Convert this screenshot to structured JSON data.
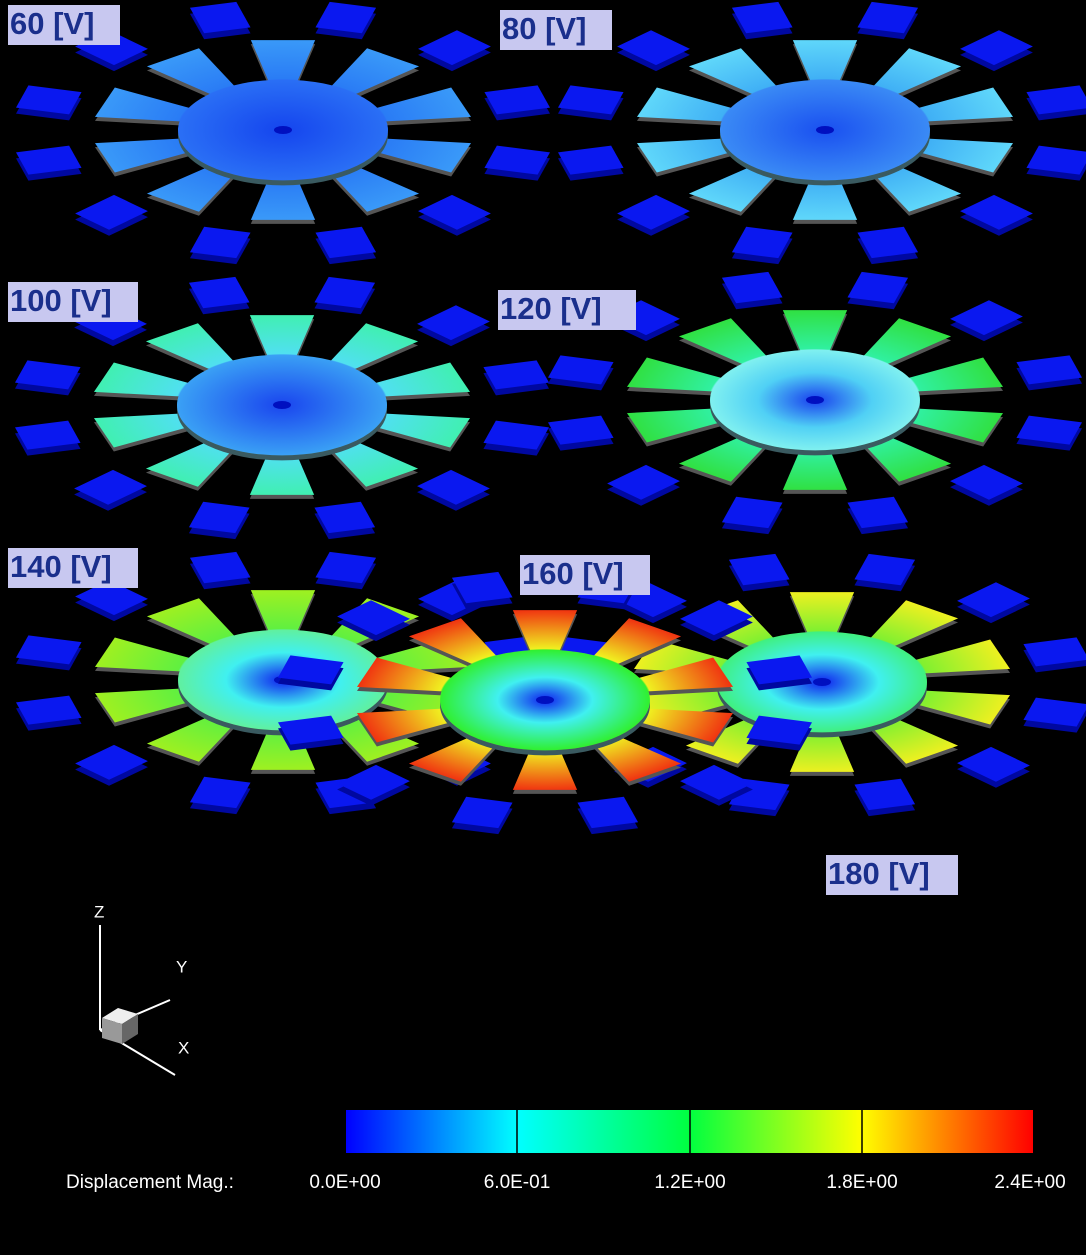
{
  "panels": [
    {
      "label": "60 [V]"
    },
    {
      "label": "80 [V]"
    },
    {
      "label": "100 [V]"
    },
    {
      "label": "120 [V]"
    },
    {
      "label": "140 [V]"
    },
    {
      "label": "160 [V]"
    },
    {
      "label": "180 [V]"
    }
  ],
  "axes_triad": {
    "z": "Z",
    "y": "Y",
    "x": "X"
  },
  "colorbar": {
    "title": "Displacement Mag.:",
    "ticks": [
      "0.0E+00",
      "6.0E-01",
      "1.2E+00",
      "1.8E+00",
      "2.4E+00"
    ]
  }
}
